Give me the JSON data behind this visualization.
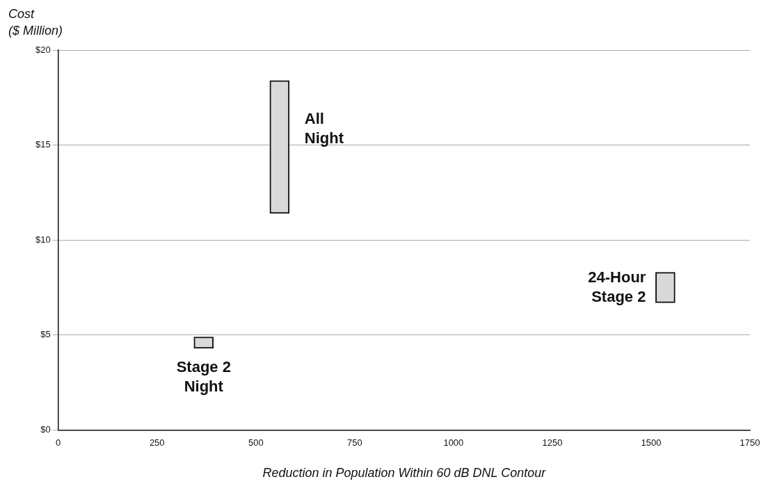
{
  "chart_data": {
    "type": "bar",
    "series": [
      {
        "name": "Stage 2\nNight",
        "color": "#d9d9d9",
        "x": [
          368
        ],
        "base": [
          4.3
        ],
        "values": [
          0.6
        ]
      },
      {
        "name": "All\nNight",
        "color": "#d9d9d9",
        "x": [
          560
        ],
        "base": [
          11.4
        ],
        "values": [
          7.0
        ]
      },
      {
        "name": "24-Hour\nStage 2",
        "color": "#d9d9d9",
        "x": [
          1536
        ],
        "base": [
          6.7
        ],
        "values": [
          1.6
        ]
      }
    ],
    "xlim": [
      0,
      1750
    ],
    "xticks": [
      0,
      250,
      500,
      750,
      1000,
      1250,
      1500,
      1750
    ],
    "ylim": [
      0,
      20
    ],
    "yticks": [
      {
        "value": 0,
        "label": "$0"
      },
      {
        "value": 5,
        "label": "$5"
      },
      {
        "value": 10,
        "label": "$10"
      },
      {
        "value": 15,
        "label": "$15"
      },
      {
        "value": 20,
        "label": "$20"
      }
    ],
    "xlabel": "Reduction in Population Within 60 dB DNL Contour",
    "ylabel": "Cost\n($ Million)",
    "grid": "y",
    "legend": false
  }
}
